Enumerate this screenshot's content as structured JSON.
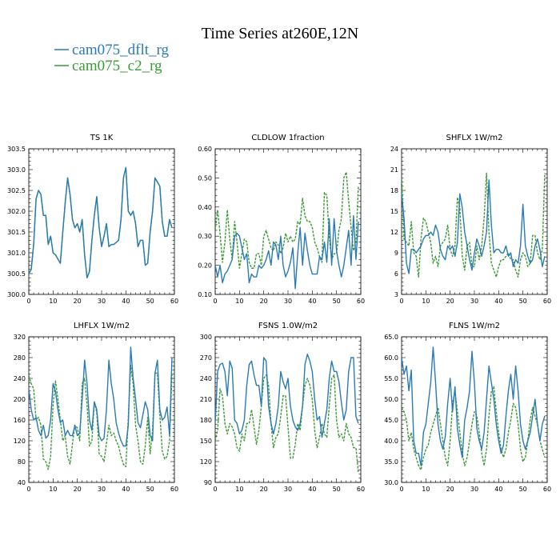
{
  "figure": {
    "title": "Time Series at260E,12N"
  },
  "legend": [
    {
      "name": "cam075_dflt_rg",
      "color": "#2a7ab5"
    },
    {
      "name": "cam075_c2_rg",
      "color": "#3a9b35"
    }
  ],
  "chart_data": [
    {
      "type": "line",
      "title": "TS   1K",
      "xlim": [
        0,
        60
      ],
      "ylim": [
        300.0,
        303.5
      ],
      "xticks": [
        0,
        10,
        20,
        30,
        40,
        50,
        60
      ],
      "yticks": [
        300.0,
        300.5,
        301.0,
        301.5,
        302.0,
        302.5,
        303.0,
        303.5
      ],
      "ytick_labels": [
        "300.0",
        "300.5",
        "301.0",
        "301.5",
        "302.0",
        "302.5",
        "303.0",
        "303.5"
      ],
      "series": [
        {
          "name": "cam075_dflt_rg",
          "color": "#2a7ab5",
          "dash": "solid",
          "values": [
            300.5,
            300.6,
            301.2,
            302.3,
            302.5,
            302.4,
            301.9,
            301.9,
            301.2,
            301.4,
            301.0,
            300.95,
            300.85,
            300.75,
            301.5,
            302.2,
            302.8,
            302.4,
            301.8,
            301.6,
            301.7,
            301.5,
            301.8,
            300.95,
            300.4,
            300.55,
            301.3,
            301.9,
            302.35,
            301.6,
            301.15,
            301.4,
            301.7,
            301.15,
            301.2,
            301.2,
            301.25,
            301.3,
            301.8,
            302.8,
            303.05,
            302.0,
            301.9,
            302.0,
            301.7,
            301.15,
            301.3,
            301.3,
            300.7,
            300.75,
            301.5,
            302.0,
            302.8,
            302.7,
            302.6,
            301.75,
            301.4,
            301.4,
            301.8,
            301.6
          ]
        },
        {
          "name": "cam075_c2_rg",
          "color": "#3a9b35",
          "dash": "solid",
          "values": [
            300.5,
            300.6,
            301.2,
            302.3,
            302.5,
            302.4,
            301.9,
            301.9,
            301.2,
            301.4,
            301.0,
            300.95,
            300.85,
            300.75,
            301.5,
            302.2,
            302.8,
            302.4,
            301.8,
            301.6,
            301.7,
            301.5,
            301.8,
            300.95,
            300.4,
            300.55,
            301.3,
            301.9,
            302.35,
            301.6,
            301.15,
            301.4,
            301.7,
            301.15,
            301.2,
            301.2,
            301.25,
            301.3,
            301.8,
            302.8,
            303.05,
            302.0,
            301.9,
            302.0,
            301.7,
            301.15,
            301.3,
            301.3,
            300.7,
            300.75,
            301.5,
            302.0,
            302.8,
            302.7,
            302.6,
            301.75,
            301.4,
            301.4,
            301.8,
            301.6
          ]
        }
      ]
    },
    {
      "type": "line",
      "title": "CLDLOW   1fraction",
      "xlim": [
        0,
        60
      ],
      "ylim": [
        0.1,
        0.6
      ],
      "xticks": [
        0,
        10,
        20,
        30,
        40,
        50,
        60
      ],
      "yticks": [
        0.1,
        0.2,
        0.3,
        0.4,
        0.5,
        0.6
      ],
      "ytick_labels": [
        "0.10",
        "0.20",
        "0.30",
        "0.40",
        "0.50",
        "0.60"
      ],
      "series": [
        {
          "name": "cam075_dflt_rg",
          "color": "#2a7ab5",
          "dash": "solid",
          "values": [
            0.2,
            0.16,
            0.2,
            0.14,
            0.17,
            0.18,
            0.2,
            0.22,
            0.3,
            0.31,
            0.3,
            0.26,
            0.22,
            0.24,
            0.14,
            0.17,
            0.16,
            0.16,
            0.2,
            0.19,
            0.2,
            0.22,
            0.25,
            0.2,
            0.28,
            0.27,
            0.22,
            0.3,
            0.2,
            0.16,
            0.18,
            0.21,
            0.26,
            0.12,
            0.24,
            0.33,
            0.2,
            0.31,
            0.25,
            0.2,
            0.17,
            0.17,
            0.17,
            0.23,
            0.22,
            0.28,
            0.21,
            0.36,
            0.2,
            0.36,
            0.25,
            0.2,
            0.16,
            0.2,
            0.26,
            0.32,
            0.2,
            0.37,
            0.22,
            0.35
          ]
        },
        {
          "name": "cam075_c2_rg",
          "color": "#3a9b35",
          "dash": "dash",
          "values": [
            0.32,
            0.39,
            0.31,
            0.21,
            0.28,
            0.39,
            0.29,
            0.22,
            0.35,
            0.28,
            0.19,
            0.24,
            0.29,
            0.28,
            0.21,
            0.19,
            0.19,
            0.24,
            0.24,
            0.2,
            0.3,
            0.32,
            0.29,
            0.26,
            0.25,
            0.28,
            0.27,
            0.24,
            0.26,
            0.31,
            0.28,
            0.3,
            0.28,
            0.29,
            0.35,
            0.34,
            0.43,
            0.37,
            0.35,
            0.35,
            0.33,
            0.28,
            0.26,
            0.23,
            0.21,
            0.45,
            0.44,
            0.3,
            0.22,
            0.24,
            0.24,
            0.32,
            0.36,
            0.5,
            0.52,
            0.42,
            0.33,
            0.25,
            0.28,
            0.47
          ]
        }
      ]
    },
    {
      "type": "line",
      "title": "SHFLX   1W/m2",
      "xlim": [
        0,
        60
      ],
      "ylim": [
        3,
        24
      ],
      "xticks": [
        0,
        10,
        20,
        30,
        40,
        50,
        60
      ],
      "yticks": [
        3,
        6,
        9,
        12,
        15,
        18,
        21,
        24
      ],
      "ytick_labels": [
        "3",
        "6",
        "9",
        "12",
        "15",
        "18",
        "21",
        "24"
      ],
      "series": [
        {
          "name": "cam075_dflt_rg",
          "color": "#2a7ab5",
          "dash": "solid",
          "values": [
            17.5,
            14.0,
            7.5,
            6.0,
            9.5,
            9.5,
            9.0,
            9.5,
            10.0,
            11.0,
            11.5,
            11.5,
            12.0,
            11.5,
            13.0,
            12.0,
            9.5,
            8.5,
            8.0,
            10.0,
            9.5,
            10.0,
            8.5,
            10.5,
            17.5,
            15.5,
            12.0,
            10.0,
            8.0,
            6.5,
            9.0,
            11.0,
            10.0,
            8.5,
            10.0,
            12.0,
            19.5,
            13.0,
            9.0,
            9.5,
            9.5,
            9.0,
            9.0,
            10.0,
            8.5,
            9.0,
            7.0,
            8.0,
            7.5,
            10.0,
            16.0,
            10.0,
            8.5,
            7.5,
            8.0,
            10.0,
            11.0,
            9.5,
            7.0,
            8.5
          ]
        },
        {
          "name": "cam075_c2_rg",
          "color": "#3a9b35",
          "dash": "dash",
          "values": [
            20.0,
            11.0,
            10.5,
            10.0,
            13.5,
            9.0,
            8.5,
            5.5,
            11.0,
            14.0,
            13.5,
            12.0,
            10.5,
            7.5,
            8.5,
            7.0,
            10.0,
            10.5,
            11.0,
            13.0,
            9.5,
            8.5,
            10.0,
            17.0,
            15.5,
            8.5,
            6.5,
            10.0,
            10.5,
            7.0,
            7.0,
            10.0,
            8.0,
            10.0,
            14.0,
            20.5,
            12.0,
            7.5,
            6.5,
            5.5,
            7.0,
            8.0,
            8.0,
            8.5,
            9.0,
            8.0,
            8.0,
            6.5,
            5.5,
            8.0,
            9.0,
            8.5,
            7.0,
            7.5,
            11.5,
            11.5,
            9.0,
            8.0,
            9.5,
            20.5
          ]
        }
      ]
    },
    {
      "type": "line",
      "title": "LHFLX   1W/m2",
      "xlim": [
        0,
        60
      ],
      "ylim": [
        40,
        320
      ],
      "xticks": [
        0,
        10,
        20,
        30,
        40,
        50,
        60
      ],
      "yticks": [
        40,
        80,
        120,
        160,
        200,
        240,
        280,
        320
      ],
      "ytick_labels": [
        "40",
        "80",
        "120",
        "160",
        "200",
        "240",
        "280",
        "320"
      ],
      "series": [
        {
          "name": "cam075_dflt_rg",
          "color": "#2a7ab5",
          "dash": "solid",
          "values": [
            220,
            180,
            160,
            165,
            140,
            130,
            150,
            125,
            130,
            160,
            230,
            215,
            180,
            155,
            160,
            130,
            140,
            130,
            130,
            150,
            130,
            135,
            200,
            275,
            230,
            160,
            140,
            195,
            180,
            130,
            120,
            125,
            180,
            275,
            230,
            200,
            155,
            135,
            120,
            110,
            110,
            150,
            300,
            240,
            200,
            155,
            145,
            170,
            195,
            180,
            130,
            120,
            250,
            275,
            180,
            160,
            165,
            185,
            130,
            280
          ]
        },
        {
          "name": "cam075_c2_rg",
          "color": "#3a9b35",
          "dash": "dash",
          "values": [
            245,
            230,
            220,
            160,
            165,
            150,
            85,
            80,
            65,
            90,
            190,
            235,
            200,
            160,
            120,
            130,
            90,
            75,
            115,
            150,
            145,
            120,
            230,
            240,
            190,
            110,
            120,
            195,
            175,
            95,
            90,
            80,
            115,
            150,
            130,
            135,
            120,
            110,
            90,
            75,
            70,
            165,
            265,
            230,
            150,
            120,
            80,
            75,
            110,
            165,
            95,
            140,
            250,
            250,
            170,
            100,
            85,
            90,
            120,
            250
          ]
        }
      ]
    },
    {
      "type": "line",
      "title": "FSNS   1.0W/m2",
      "xlim": [
        0,
        60
      ],
      "ylim": [
        90,
        300
      ],
      "xticks": [
        0,
        10,
        20,
        30,
        40,
        50,
        60
      ],
      "yticks": [
        90,
        120,
        150,
        180,
        210,
        240,
        270,
        300
      ],
      "ytick_labels": [
        "90",
        "120",
        "150",
        "180",
        "210",
        "240",
        "270",
        "300"
      ],
      "series": [
        {
          "name": "cam075_dflt_rg",
          "color": "#2a7ab5",
          "dash": "solid",
          "values": [
            175,
            250,
            260,
            262,
            250,
            215,
            265,
            255,
            180,
            175,
            160,
            165,
            180,
            230,
            260,
            265,
            245,
            230,
            230,
            200,
            270,
            265,
            200,
            175,
            160,
            175,
            200,
            250,
            235,
            225,
            240,
            200,
            180,
            170,
            165,
            175,
            200,
            260,
            275,
            265,
            250,
            210,
            180,
            185,
            155,
            175,
            195,
            240,
            265,
            250,
            250,
            235,
            205,
            180,
            195,
            250,
            270,
            270,
            185,
            175
          ]
        },
        {
          "name": "cam075_c2_rg",
          "color": "#3a9b35",
          "dash": "dash",
          "values": [
            150,
            165,
            225,
            215,
            175,
            160,
            175,
            170,
            160,
            140,
            135,
            160,
            150,
            175,
            175,
            195,
            170,
            145,
            165,
            200,
            240,
            245,
            230,
            175,
            140,
            155,
            160,
            185,
            215,
            215,
            170,
            125,
            125,
            145,
            175,
            165,
            200,
            230,
            240,
            230,
            210,
            165,
            140,
            155,
            175,
            160,
            155,
            200,
            240,
            245,
            180,
            155,
            160,
            150,
            175,
            160,
            155,
            140,
            140,
            105
          ]
        }
      ]
    },
    {
      "type": "line",
      "title": "FLNS   1W/m2",
      "xlim": [
        0,
        60
      ],
      "ylim": [
        30.0,
        65.0
      ],
      "xticks": [
        0,
        10,
        20,
        30,
        40,
        50,
        60
      ],
      "yticks": [
        30.0,
        35.0,
        40.0,
        45.0,
        50.0,
        55.0,
        60.0,
        65.0
      ],
      "ytick_labels": [
        "30.0",
        "35.0",
        "40.0",
        "45.0",
        "50.0",
        "55.0",
        "60.0",
        "65.0"
      ],
      "series": [
        {
          "name": "cam075_dflt_rg",
          "color": "#2a7ab5",
          "dash": "solid",
          "values": [
            60.0,
            56.0,
            58.0,
            52.0,
            57.0,
            40.0,
            37.0,
            37.0,
            34.0,
            42.0,
            44.0,
            49.0,
            54.0,
            62.5,
            54.0,
            44.0,
            40.0,
            38.0,
            41.0,
            49.0,
            55.0,
            47.0,
            53.0,
            43.0,
            39.0,
            36.0,
            45.0,
            48.0,
            52.0,
            61.5,
            54.0,
            43.0,
            40.0,
            38.0,
            42.0,
            50.0,
            58.0,
            54.0,
            50.0,
            44.0,
            40.0,
            37.0,
            39.0,
            46.0,
            52.0,
            56.0,
            50.0,
            58.0,
            52.0,
            44.0,
            40.0,
            38.0,
            40.0,
            42.0,
            46.0,
            50.0,
            44.0,
            40.0,
            44.0,
            46.0
          ]
        },
        {
          "name": "cam075_c2_rg",
          "color": "#3a9b35",
          "dash": "dash",
          "values": [
            48.0,
            47.0,
            45.0,
            40.0,
            42.0,
            38.0,
            36.0,
            34.0,
            33.0,
            36.0,
            38.0,
            39.0,
            42.0,
            44.0,
            46.0,
            48.0,
            44.0,
            40.0,
            36.0,
            34.0,
            40.0,
            49.0,
            52.0,
            47.0,
            42.0,
            37.0,
            34.0,
            36.0,
            40.0,
            44.0,
            47.0,
            46.0,
            42.0,
            37.0,
            34.0,
            38.0,
            46.0,
            52.0,
            53.0,
            47.0,
            42.0,
            38.0,
            36.0,
            38.0,
            42.0,
            45.0,
            49.0,
            48.0,
            44.0,
            38.0,
            35.0,
            36.0,
            40.0,
            45.0,
            48.0,
            46.0,
            44.0,
            40.0,
            38.0,
            36.0
          ]
        }
      ]
    }
  ]
}
